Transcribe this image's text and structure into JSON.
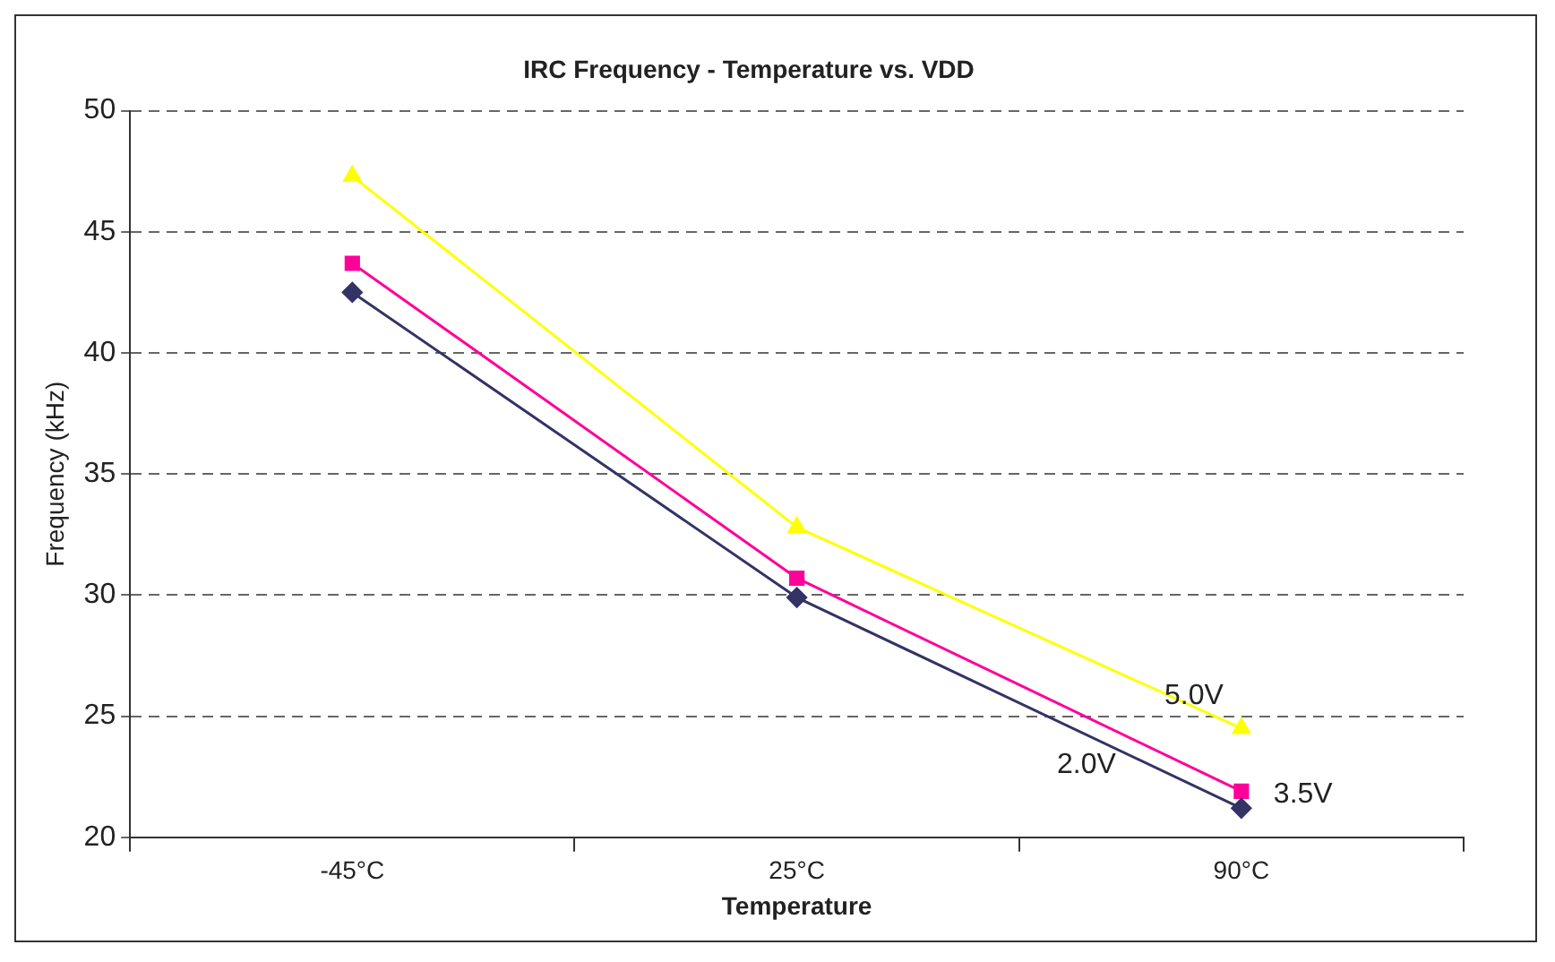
{
  "chart_data": {
    "type": "line",
    "title": "IRC Frequency - Temperature vs. VDD",
    "xlabel": "Temperature",
    "ylabel": "Frequency (kHz)",
    "categories": [
      "-45°C",
      "25°C",
      "90°C"
    ],
    "series": [
      {
        "name": "2.0V",
        "color": "#333366",
        "marker": "diamond",
        "values": [
          42.5,
          29.9,
          21.2
        ]
      },
      {
        "name": "3.5V",
        "color": "#ff0099",
        "marker": "square",
        "values": [
          43.7,
          30.7,
          21.9
        ]
      },
      {
        "name": "5.0V",
        "color": "#ffff00",
        "marker": "triangle",
        "values": [
          47.3,
          32.8,
          24.5
        ]
      }
    ],
    "ylim": [
      20,
      50
    ],
    "yticks": [
      20,
      25,
      30,
      35,
      40,
      45,
      50
    ],
    "grid": "y",
    "legend": false,
    "line_style": "solid"
  }
}
